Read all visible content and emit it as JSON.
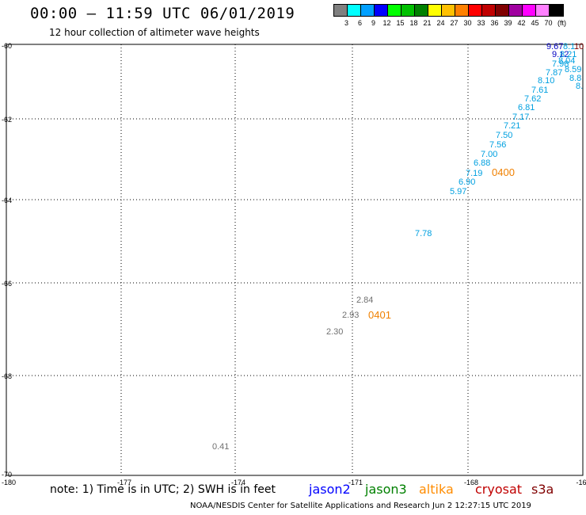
{
  "header": {
    "title": "00:00 – 11:59 UTC 06/01/2019",
    "subtitle": "12 hour collection of altimeter wave heights"
  },
  "legend": {
    "colors": [
      "#808080",
      "#00ffff",
      "#00a0ff",
      "#0000ff",
      "#00ff00",
      "#00c000",
      "#008000",
      "#ffff00",
      "#ffc000",
      "#ff8000",
      "#ff0000",
      "#c00000",
      "#800000",
      "#a000a0",
      "#ff00ff",
      "#ff80ff",
      "#000000"
    ],
    "labels": [
      "3",
      "6",
      "9",
      "12",
      "15",
      "18",
      "21",
      "24",
      "27",
      "30",
      "33",
      "36",
      "39",
      "42",
      "45",
      "70",
      "(ft)"
    ]
  },
  "map": {
    "lat_ticks": [
      "-60",
      "-62",
      "-64",
      "-66",
      "-68",
      "-70"
    ],
    "lon_ticks": [
      "-180",
      "-177",
      "-174",
      "-171",
      "-168",
      "-16"
    ],
    "grid": "dotted",
    "wave_labels": [
      {
        "text": "9.67",
        "color": "#0000c0"
      },
      {
        "text": "8.1",
        "color": "#00a0e0"
      },
      {
        "text": "10",
        "color": "#800000"
      },
      {
        "text": "9.12",
        "color": "#0000c0"
      },
      {
        "text": "8.21",
        "color": "#00a0e0"
      },
      {
        "text": "7.98",
        "color": "#00a0e0"
      },
      {
        "text": "8.04",
        "color": "#00a0e0"
      },
      {
        "text": "8.59",
        "color": "#00a0e0"
      },
      {
        "text": "7.87",
        "color": "#00a0e0"
      },
      {
        "text": "8.8",
        "color": "#00a0e0"
      },
      {
        "text": "8.10",
        "color": "#00a0e0"
      },
      {
        "text": "8.",
        "color": "#00a0e0"
      },
      {
        "text": "7.61",
        "color": "#00a0e0"
      },
      {
        "text": "7.62",
        "color": "#00a0e0"
      },
      {
        "text": "6.81",
        "color": "#00a0e0"
      },
      {
        "text": "7.17",
        "color": "#00a0e0"
      },
      {
        "text": "7.21",
        "color": "#00a0e0"
      },
      {
        "text": "7.50",
        "color": "#00a0e0"
      },
      {
        "text": "7.56",
        "color": "#00a0e0"
      },
      {
        "text": "7.00",
        "color": "#00a0e0"
      },
      {
        "text": "6.88",
        "color": "#00a0e0"
      },
      {
        "text": "7.19",
        "color": "#00a0e0"
      },
      {
        "text": "6.90",
        "color": "#00a0e0"
      },
      {
        "text": "5.97",
        "color": "#00a0e0"
      },
      {
        "text": "7.78",
        "color": "#00a0e0"
      },
      {
        "text": "2.84",
        "color": "#707070"
      },
      {
        "text": "2.93",
        "color": "#707070"
      },
      {
        "text": "2.30",
        "color": "#707070"
      },
      {
        "text": "0.41",
        "color": "#707070"
      }
    ],
    "time_labels": [
      {
        "text": "0400",
        "color": "#f08000"
      },
      {
        "text": "0401",
        "color": "#f08000"
      }
    ]
  },
  "footer": {
    "note": "note: 1) Time is in UTC; 2) SWH is in feet",
    "satellites": [
      {
        "name": "jason2",
        "color": "#0000ff"
      },
      {
        "name": "jason3",
        "color": "#008000"
      },
      {
        "name": "altika",
        "color": "#ff8c00"
      },
      {
        "name": "cryosat",
        "color": "#c00000"
      },
      {
        "name": "s3a",
        "color": "#800000"
      }
    ],
    "credit": "NOAA/NESDIS Center for Satellite Applications and Research    Jun  2 12:27:15 UTC 2019"
  }
}
